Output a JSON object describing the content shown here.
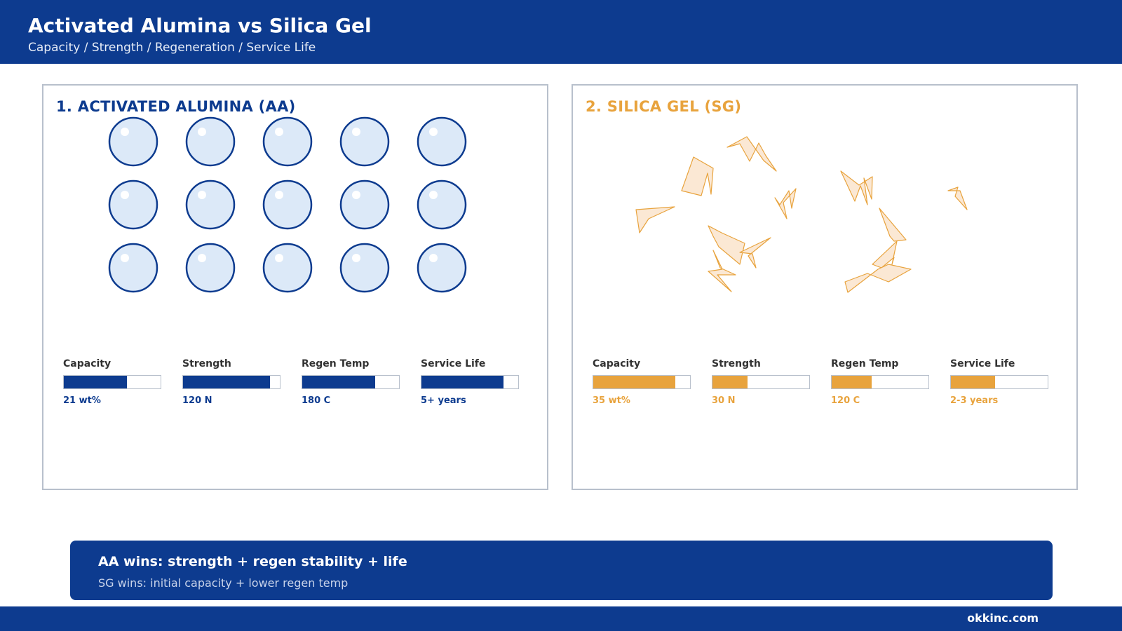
{
  "header": {
    "title": "Activated Alumina vs Silica Gel",
    "subtitle": "Capacity / Strength / Regeneration / Service Life"
  },
  "panels": [
    {
      "title": "1. ACTIVATED ALUMINA (AA)",
      "accent": "#0d3b8f",
      "illustration": "spherical-beads",
      "metrics": [
        {
          "label": "Capacity",
          "value": "21 wt%",
          "level": 0.65
        },
        {
          "label": "Strength",
          "value": "120 N",
          "level": 0.9
        },
        {
          "label": "Regen Temp",
          "value": "180 C",
          "level": 0.75
        },
        {
          "label": "Service Life",
          "value": "5+ years",
          "level": 0.85
        }
      ]
    },
    {
      "title": "2. SILICA GEL (SG)",
      "accent": "#e8a33d",
      "illustration": "irregular-fragments",
      "metrics": [
        {
          "label": "Capacity",
          "value": "35 wt%",
          "level": 0.85
        },
        {
          "label": "Strength",
          "value": "30 N",
          "level": 0.36
        },
        {
          "label": "Regen Temp",
          "value": "120 C",
          "level": 0.41
        },
        {
          "label": "Service Life",
          "value": "2-3 years",
          "level": 0.46
        }
      ]
    }
  ],
  "summary": {
    "line1": "AA wins: strength + regen stability + life",
    "line2": "SG wins: initial capacity + lower regen temp"
  },
  "footer": {
    "brand": "okkinc.com"
  },
  "colors": {
    "primary": "#0d3b8f",
    "accent": "#e8a33d",
    "bead_fill": "#dce9f8",
    "fragment_fill": "#fbe8d4"
  }
}
